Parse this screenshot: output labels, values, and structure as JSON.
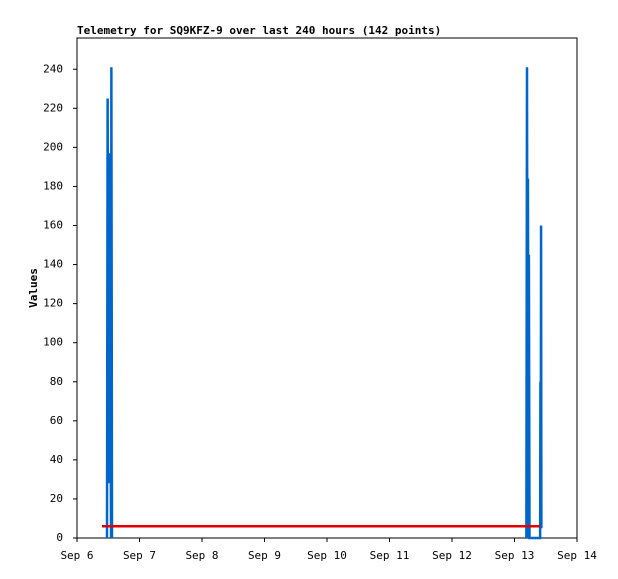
{
  "chart_data": {
    "type": "line",
    "title": "Telemetry for SQ9KFZ-9 over last 240 hours (142 points)",
    "y_label": "Values",
    "xlim": [
      6,
      14
    ],
    "xticks": [
      {
        "value": 6,
        "label": "Sep 6"
      },
      {
        "value": 7,
        "label": "Sep 7"
      },
      {
        "value": 8,
        "label": "Sep 8"
      },
      {
        "value": 9,
        "label": "Sep 9"
      },
      {
        "value": 10,
        "label": "Sep 10"
      },
      {
        "value": 11,
        "label": "Sep 11"
      },
      {
        "value": 12,
        "label": "Sep 12"
      },
      {
        "value": 13,
        "label": "Sep 13"
      },
      {
        "value": 14,
        "label": "Sep 14"
      }
    ],
    "ylim": [
      0,
      256
    ],
    "yticks": [
      0,
      20,
      40,
      60,
      80,
      100,
      120,
      140,
      160,
      180,
      200,
      220,
      240
    ],
    "grid": false,
    "series": [
      {
        "color": "#0066cc",
        "x": [
          6.48,
          6.49,
          6.5,
          6.51,
          6.52,
          6.53,
          6.545,
          6.55,
          6.56,
          null,
          13.19,
          13.2,
          13.21,
          13.215,
          13.225,
          13.23,
          13.24,
          13.41,
          13.415,
          13.42,
          13.425,
          13.43
        ],
        "values": [
          0,
          225,
          85,
          197,
          28,
          141,
          0,
          241,
          0,
          null,
          0,
          241,
          0,
          184,
          0,
          145,
          0,
          0,
          80,
          5,
          160,
          5
        ]
      },
      {
        "color": "#e00000",
        "x": [
          6.4,
          13.41
        ],
        "values": [
          6,
          6
        ]
      }
    ]
  }
}
